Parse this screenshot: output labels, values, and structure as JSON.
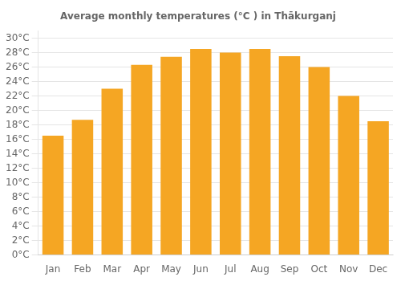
{
  "chart_data": {
    "type": "bar",
    "title": "Average monthly temperatures (°C ) in Thākurganj",
    "categories": [
      "Jan",
      "Feb",
      "Mar",
      "Apr",
      "May",
      "Jun",
      "Jul",
      "Aug",
      "Sep",
      "Oct",
      "Nov",
      "Dec"
    ],
    "values": [
      16.5,
      18.7,
      23.0,
      26.3,
      27.4,
      28.5,
      28.0,
      28.5,
      27.5,
      26.0,
      22.0,
      18.5
    ],
    "color": "#F5A623",
    "ylim": [
      0,
      31
    ],
    "yticks": [
      {
        "value": 0,
        "label": "0°C"
      },
      {
        "value": 2,
        "label": "2°C"
      },
      {
        "value": 4,
        "label": "4°C"
      },
      {
        "value": 6,
        "label": "6°C"
      },
      {
        "value": 8,
        "label": "8°C"
      },
      {
        "value": 10,
        "label": "10°C"
      },
      {
        "value": 12,
        "label": "12°C"
      },
      {
        "value": 14,
        "label": "14°C"
      },
      {
        "value": 16,
        "label": "16°C"
      },
      {
        "value": 18,
        "label": "18°C"
      },
      {
        "value": 20,
        "label": "20°C"
      },
      {
        "value": 22,
        "label": "22°C"
      },
      {
        "value": 24,
        "label": "24°C"
      },
      {
        "value": 26,
        "label": "26°C"
      },
      {
        "value": 28,
        "label": "28°C"
      },
      {
        "value": 30,
        "label": "30°C"
      }
    ],
    "grid": true
  }
}
